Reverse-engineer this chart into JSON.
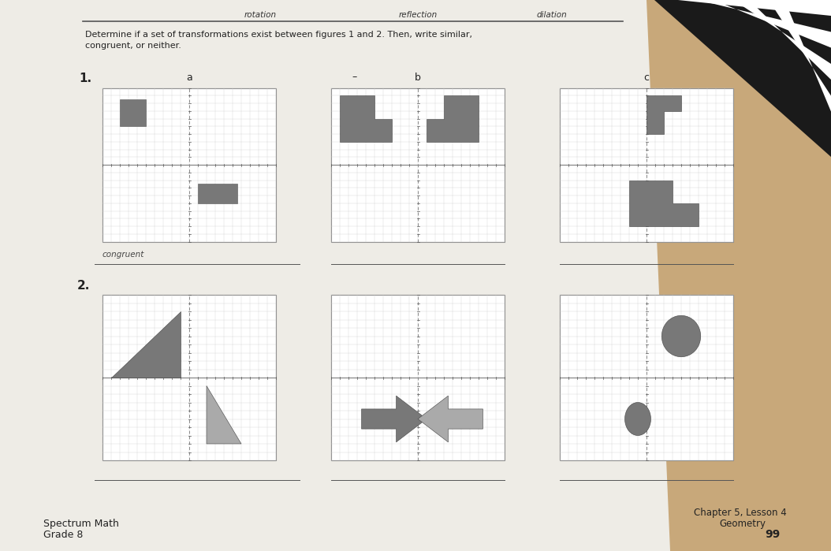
{
  "page_color": "#ddd9d0",
  "book_color": "#e8e4dc",
  "grid_bg": "#ffffff",
  "grid_line_color": "#cccccc",
  "shape_gray": "#787878",
  "shape_light": "#999999",
  "axis_dashed_color": "#888888",
  "title_line1": "Determine if a set of transformations exist between figures 1 and 2. Then, write similar,",
  "title_line2": "congruent, or neither.",
  "label_a": "a",
  "label_b": "b",
  "label_c": "c",
  "sec1": "1.",
  "sec2": "2.",
  "answer_1a": "congruent",
  "footer_left1": "Spectrum Math",
  "footer_left2": "Grade 8",
  "footer_right1": "Chapter 5, Lesson 4",
  "footer_right2": "Geometry",
  "footer_right3": "99",
  "header_rotation": "rotation",
  "header_reflection": "reflection",
  "header_dilation": "dilation"
}
